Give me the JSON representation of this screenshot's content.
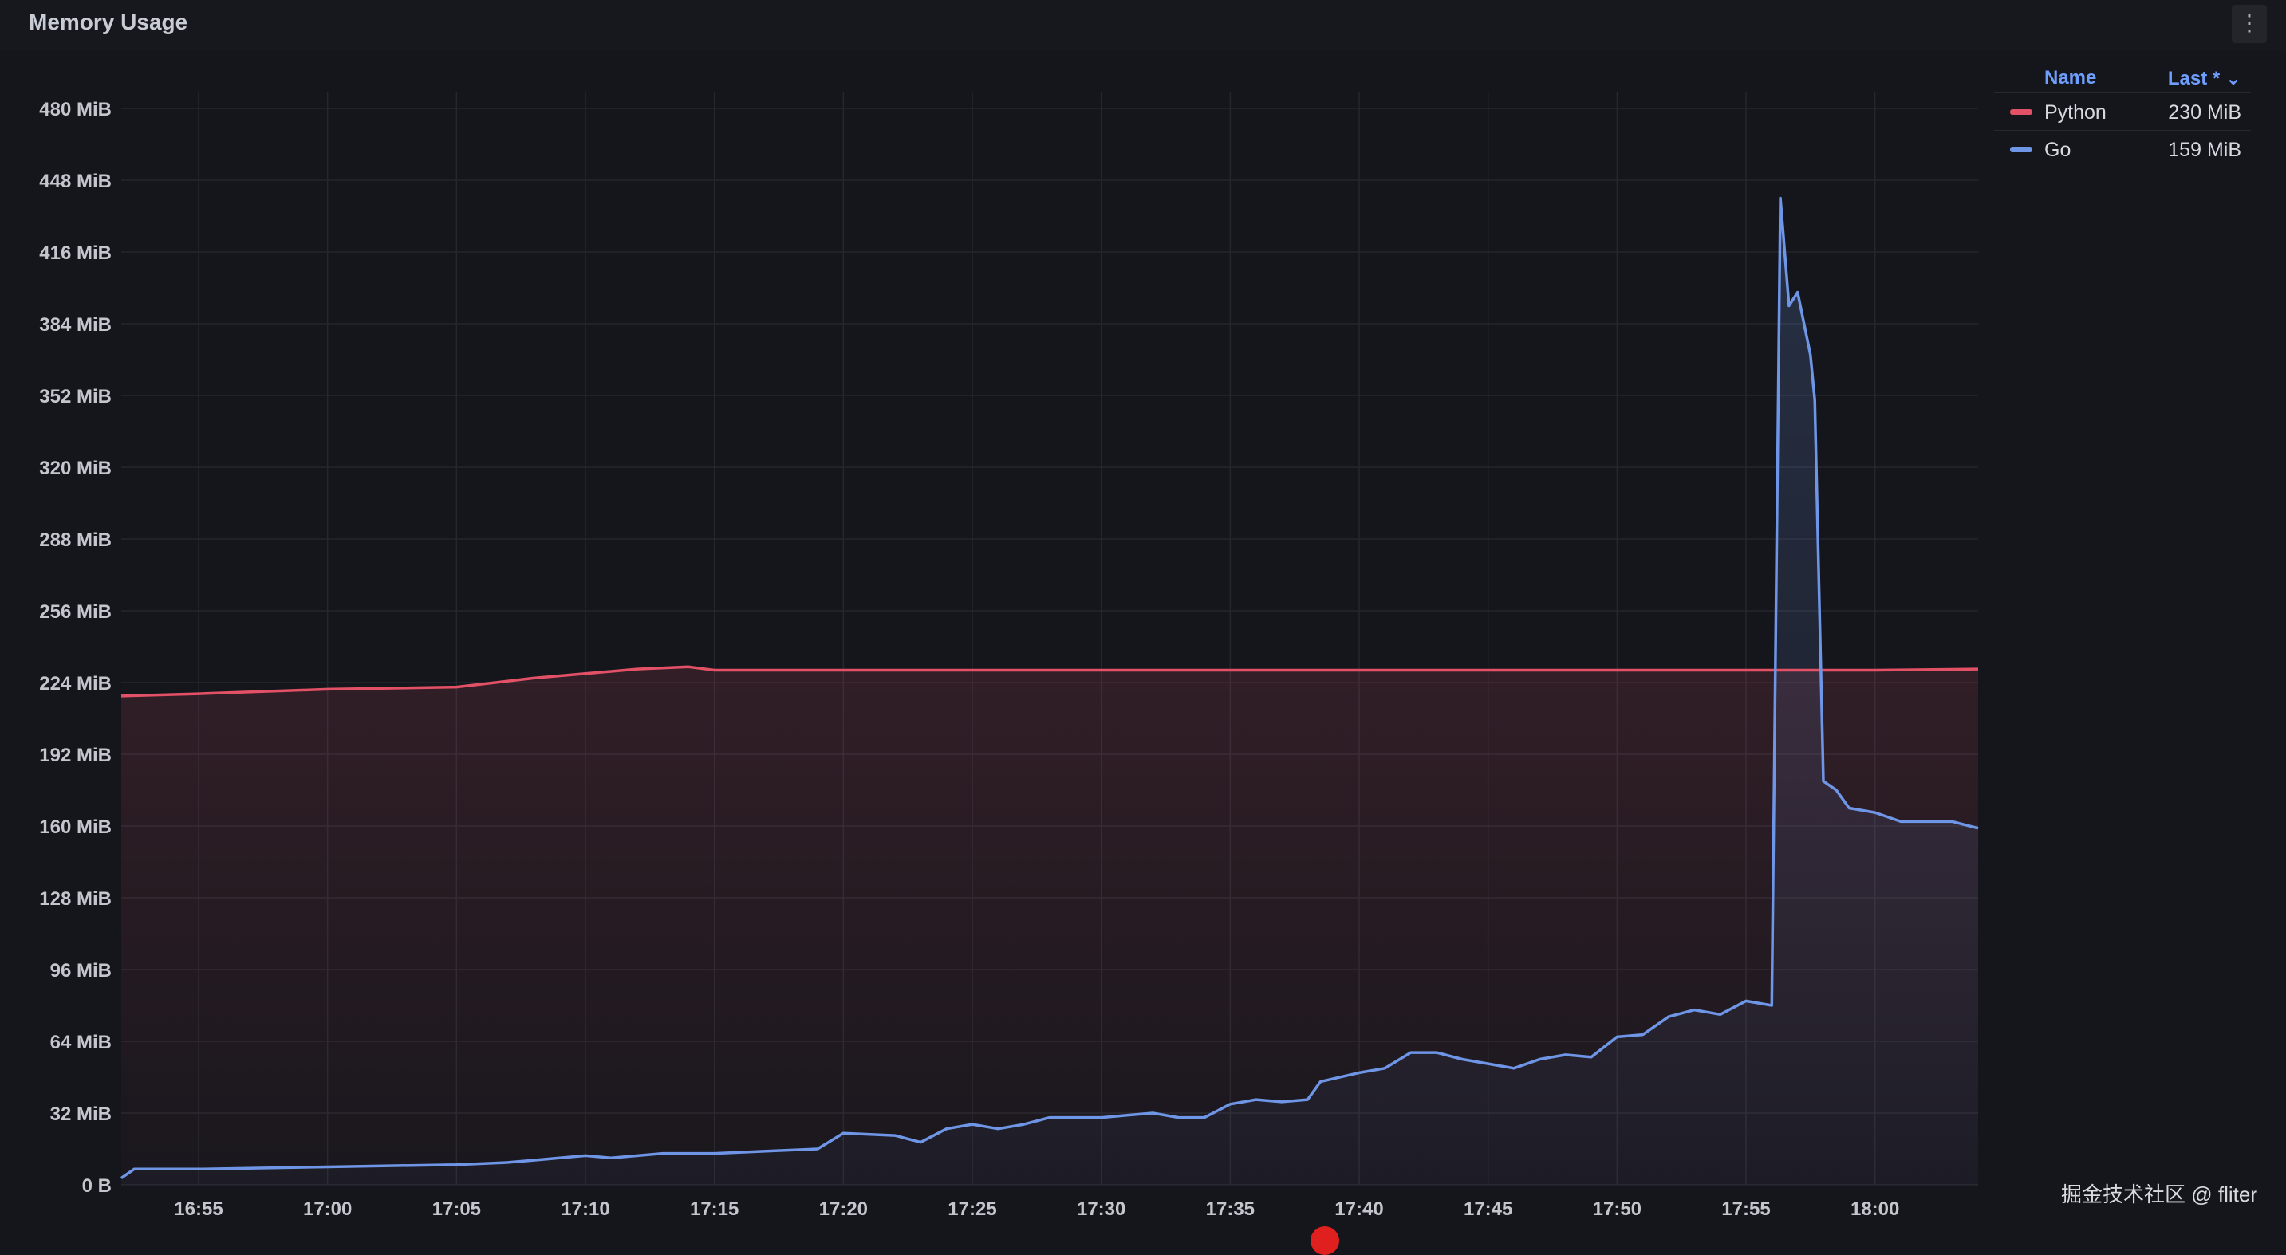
{
  "panel": {
    "title": "Memory Usage",
    "menu_icon": "⋮"
  },
  "legend": {
    "header_name": "Name",
    "header_last": "Last * ⌄",
    "items": [
      {
        "name": "Python",
        "value": "230 MiB",
        "color": "#e35166"
      },
      {
        "name": "Go",
        "value": "159 MiB",
        "color": "#6f96e6"
      }
    ]
  },
  "watermark": "掘金技术社区 @ fliter",
  "chart_data": {
    "type": "line",
    "title": "Memory Usage",
    "ylabel": "",
    "xlabel": "",
    "y_unit": "MiB",
    "ylim": [
      0,
      480
    ],
    "grid": true,
    "legend_position": "right",
    "y_ticks": [
      {
        "value": 0,
        "label": "0 B"
      },
      {
        "value": 32,
        "label": "32 MiB"
      },
      {
        "value": 64,
        "label": "64 MiB"
      },
      {
        "value": 96,
        "label": "96 MiB"
      },
      {
        "value": 128,
        "label": "128 MiB"
      },
      {
        "value": 160,
        "label": "160 MiB"
      },
      {
        "value": 192,
        "label": "192 MiB"
      },
      {
        "value": 224,
        "label": "224 MiB"
      },
      {
        "value": 256,
        "label": "256 MiB"
      },
      {
        "value": 288,
        "label": "288 MiB"
      },
      {
        "value": 320,
        "label": "320 MiB"
      },
      {
        "value": 352,
        "label": "352 MiB"
      },
      {
        "value": 384,
        "label": "384 MiB"
      },
      {
        "value": 416,
        "label": "416 MiB"
      },
      {
        "value": 448,
        "label": "448 MiB"
      },
      {
        "value": 480,
        "label": "480 MiB"
      }
    ],
    "x_range": [
      "16:52",
      "18:04"
    ],
    "x_ticks": [
      "16:55",
      "17:00",
      "17:05",
      "17:10",
      "17:15",
      "17:20",
      "17:25",
      "17:30",
      "17:35",
      "17:40",
      "17:45",
      "17:50",
      "17:55",
      "18:00"
    ],
    "series": [
      {
        "name": "Python",
        "color": "#e35166",
        "points": [
          [
            "16:52",
            218
          ],
          [
            "16:55",
            219
          ],
          [
            "17:00",
            221
          ],
          [
            "17:05",
            222
          ],
          [
            "17:08",
            226
          ],
          [
            "17:10",
            228
          ],
          [
            "17:12",
            230
          ],
          [
            "17:14",
            231
          ],
          [
            "17:15",
            229.5
          ],
          [
            "17:20",
            229.5
          ],
          [
            "17:25",
            229.5
          ],
          [
            "17:30",
            229.5
          ],
          [
            "17:35",
            229.5
          ],
          [
            "17:40",
            229.5
          ],
          [
            "17:45",
            229.5
          ],
          [
            "17:50",
            229.5
          ],
          [
            "17:55",
            229.5
          ],
          [
            "18:00",
            229.5
          ],
          [
            "18:04",
            230
          ]
        ]
      },
      {
        "name": "Go",
        "color": "#6f96e6",
        "points": [
          [
            "16:52",
            3
          ],
          [
            "16:52:30",
            7
          ],
          [
            "16:55",
            7
          ],
          [
            "17:00",
            8
          ],
          [
            "17:05",
            9
          ],
          [
            "17:07",
            10
          ],
          [
            "17:08",
            11
          ],
          [
            "17:10",
            13
          ],
          [
            "17:11",
            12
          ],
          [
            "17:13",
            14
          ],
          [
            "17:15",
            14
          ],
          [
            "17:17",
            15
          ],
          [
            "17:19",
            16
          ],
          [
            "17:20",
            23
          ],
          [
            "17:22",
            22
          ],
          [
            "17:23",
            19
          ],
          [
            "17:24",
            25
          ],
          [
            "17:25",
            27
          ],
          [
            "17:26",
            25
          ],
          [
            "17:27",
            27
          ],
          [
            "17:28",
            30
          ],
          [
            "17:30",
            30
          ],
          [
            "17:31",
            31
          ],
          [
            "17:32",
            32
          ],
          [
            "17:33",
            30
          ],
          [
            "17:34",
            30
          ],
          [
            "17:35",
            36
          ],
          [
            "17:36",
            38
          ],
          [
            "17:37",
            37
          ],
          [
            "17:38",
            38
          ],
          [
            "17:38:30",
            46
          ],
          [
            "17:40",
            50
          ],
          [
            "17:41",
            52
          ],
          [
            "17:42",
            59
          ],
          [
            "17:43",
            59
          ],
          [
            "17:44",
            56
          ],
          [
            "17:45",
            54
          ],
          [
            "17:46",
            52
          ],
          [
            "17:47",
            56
          ],
          [
            "17:48",
            58
          ],
          [
            "17:49",
            57
          ],
          [
            "17:50",
            66
          ],
          [
            "17:51",
            67
          ],
          [
            "17:52",
            75
          ],
          [
            "17:53",
            78
          ],
          [
            "17:54",
            76
          ],
          [
            "17:55",
            82
          ],
          [
            "17:56",
            80
          ],
          [
            "17:56:20",
            440
          ],
          [
            "17:56:40",
            392
          ],
          [
            "17:57",
            398
          ],
          [
            "17:57:30",
            370
          ],
          [
            "17:57:40",
            350
          ],
          [
            "17:58",
            180
          ],
          [
            "17:58:30",
            176
          ],
          [
            "17:59",
            168
          ],
          [
            "18:00",
            166
          ],
          [
            "18:01",
            162
          ],
          [
            "18:02",
            162
          ],
          [
            "18:03",
            162
          ],
          [
            "18:04",
            159
          ]
        ]
      }
    ]
  }
}
